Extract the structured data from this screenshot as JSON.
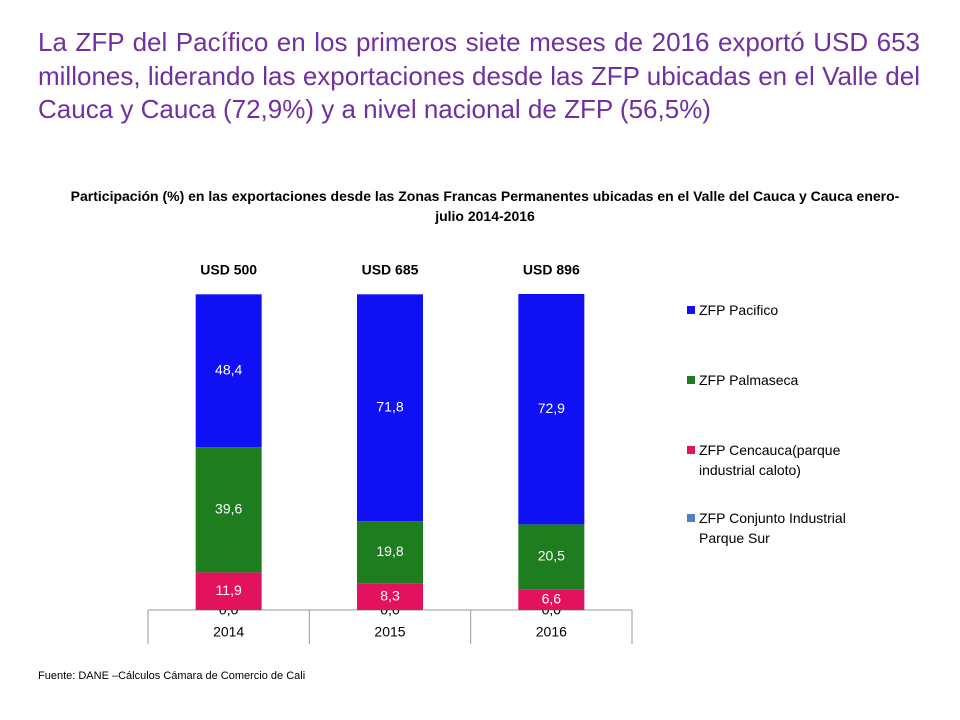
{
  "title": "La ZFP del Pacífico en los primeros siete meses de 2016 exportó USD 653 millones, liderando las exportaciones desde las ZFP ubicadas en el Valle del Cauca y Cauca (72,9%) y a nivel nacional de ZFP (56,5%)",
  "chart_data": {
    "type": "stacked-bar",
    "title": "Participación (%) en las exportaciones desde las Zonas Francas Permanentes ubicadas en el Valle del Cauca y Cauca enero-julio 2014-2016",
    "categories": [
      "2014",
      "2015",
      "2016"
    ],
    "top_labels": [
      "USD 500",
      "USD 685",
      "USD 896"
    ],
    "series": [
      {
        "name": "ZFP Pacifico",
        "color": "#1010f5",
        "values": [
          48.4,
          71.8,
          72.9
        ],
        "value_labels": [
          "48,4",
          "71,8",
          "72,9"
        ]
      },
      {
        "name": "ZFP Palmaseca",
        "color": "#1e7d1e",
        "values": [
          39.6,
          19.8,
          20.5
        ],
        "value_labels": [
          "39,6",
          "19,8",
          "20,5"
        ]
      },
      {
        "name": "ZFP Cencauca(parque industrial caloto)",
        "color": "#e3125f",
        "values": [
          11.9,
          8.3,
          6.6
        ],
        "value_labels": [
          "11,9",
          "8,3",
          "6,6"
        ]
      },
      {
        "name": "ZFP Conjunto Industrial Parque Sur",
        "color": "#4f81bd",
        "values": [
          0.0,
          0.0,
          0.0
        ],
        "value_labels": [
          "0,0",
          "0,0",
          "0,0"
        ]
      }
    ],
    "ylim": [
      0,
      100
    ],
    "legend": "right"
  },
  "source": "Fuente: DANE –Cálculos Cámara de Comercio de Cali"
}
